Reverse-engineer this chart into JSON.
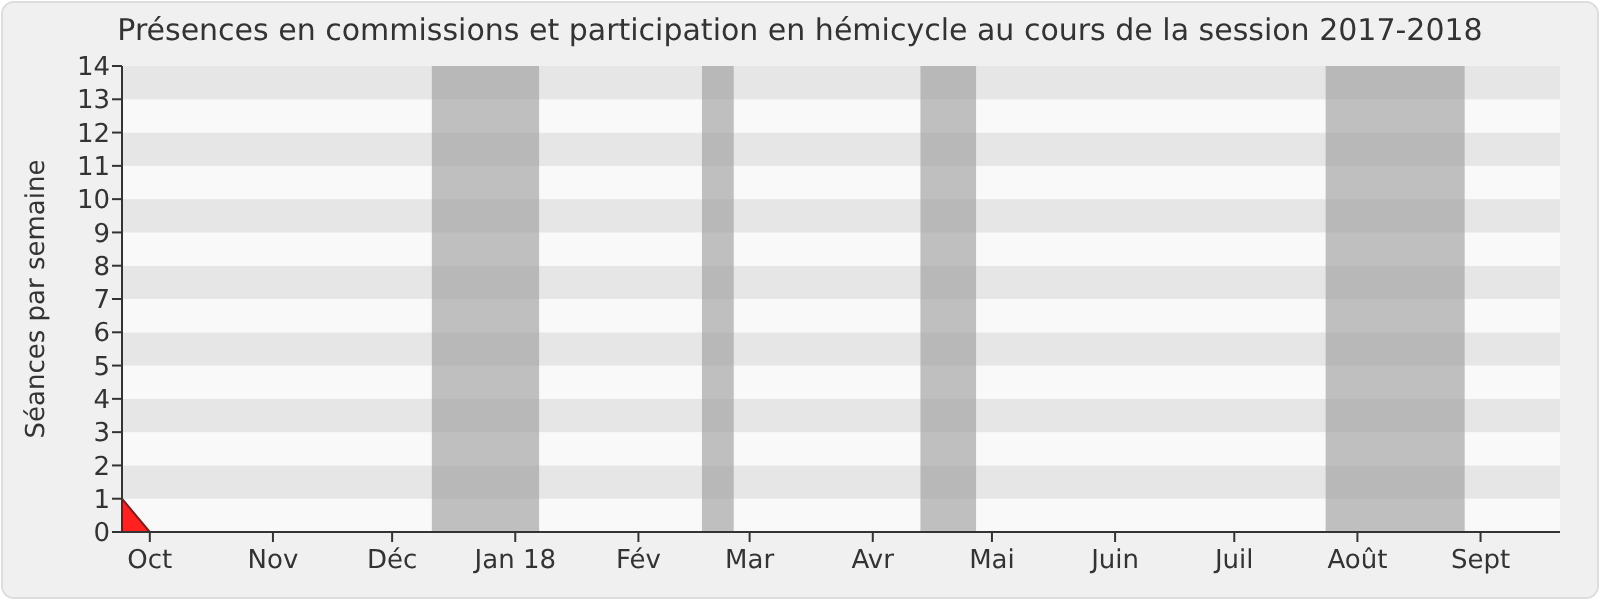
{
  "chart_data": {
    "type": "area",
    "title": "Présences en commissions et participation en hémicycle au cours de la session 2017-2018",
    "ylabel": "Séances par semaine",
    "x": [
      "2017-09-24",
      "2017-10-01",
      "2018-09-21"
    ],
    "series": [
      {
        "color": "#ff2020",
        "values": [
          1,
          0,
          0
        ]
      }
    ],
    "xlim": [
      "2017-09-24",
      "2018-09-21"
    ],
    "xticks": [
      {
        "value": "2017-10-01",
        "label": "Oct"
      },
      {
        "value": "2017-11-01",
        "label": "Nov"
      },
      {
        "value": "2017-12-01",
        "label": "Déc"
      },
      {
        "value": "2018-01-01",
        "label": "Jan 18"
      },
      {
        "value": "2018-02-01",
        "label": "Fév"
      },
      {
        "value": "2018-03-01",
        "label": "Mar"
      },
      {
        "value": "2018-04-01",
        "label": "Avr"
      },
      {
        "value": "2018-05-01",
        "label": "Mai"
      },
      {
        "value": "2018-06-01",
        "label": "Juin"
      },
      {
        "value": "2018-07-01",
        "label": "Juil"
      },
      {
        "value": "2018-08-01",
        "label": "Août"
      },
      {
        "value": "2018-09-01",
        "label": "Sept"
      }
    ],
    "ylim": [
      0,
      14
    ],
    "yticks": [
      0,
      1,
      2,
      3,
      4,
      5,
      6,
      7,
      8,
      9,
      10,
      11,
      12,
      13,
      14
    ],
    "bands": [
      {
        "axis": "x",
        "from": "2017-12-11",
        "to": "2018-01-07",
        "color": "#a0a0a0"
      },
      {
        "axis": "x",
        "from": "2018-02-17",
        "to": "2018-02-25",
        "color": "#a0a0a0"
      },
      {
        "axis": "x",
        "from": "2018-04-13",
        "to": "2018-04-27",
        "color": "#a0a0a0"
      },
      {
        "axis": "x",
        "from": "2018-07-24",
        "to": "2018-08-28",
        "color": "#a0a0a0"
      }
    ]
  }
}
